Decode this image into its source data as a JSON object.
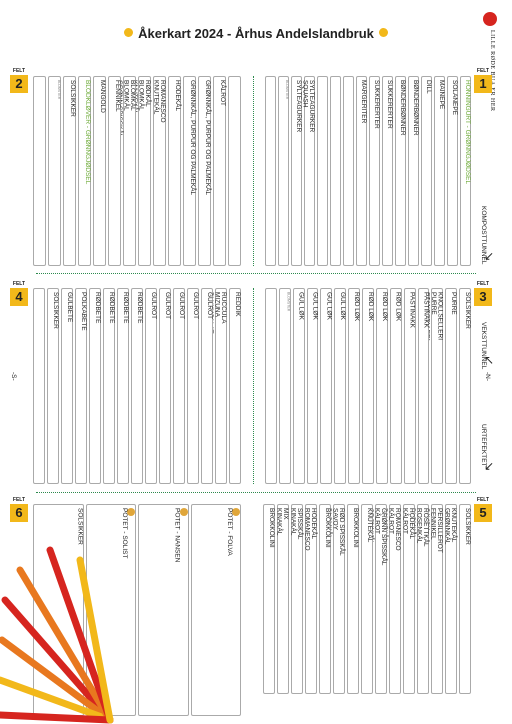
{
  "title": "Åkerkart 2024 - Århus Andelslandbruk",
  "logo": {
    "text": "LILLE RØDE BUA ER HER"
  },
  "felt_label": "FELT",
  "felts": [
    "1",
    "2",
    "3",
    "4",
    "5",
    "6"
  ],
  "side_labels": {
    "kompost": "KOMPOSTTUNNEL",
    "vekst": "VEKSTTUNNEL",
    "urte": "URTEFEKTET",
    "s": "-S-",
    "n": "-N-"
  },
  "field1": [
    [
      "HONNINGURT - GRØNNGJØDSEL"
    ],
    [
      "SOLANEPE"
    ],
    [
      "MAINEPE"
    ],
    [
      "DILL"
    ],
    [
      "BØNDERBØNNER"
    ],
    [
      "BØNDERBØNNER"
    ],
    [
      "SUKKERERTER"
    ],
    [
      "SUKKERERTER"
    ],
    [
      "MARGERITER"
    ],
    [
      ""
    ],
    [
      ""
    ],
    [
      ""
    ],
    [
      "SYLTEAGURKER",
      "SQUASH"
    ],
    [
      "SYLTEAGURKER"
    ],
    [
      "BLOMSTER"
    ],
    [
      ""
    ]
  ],
  "field2": [
    [
      ""
    ],
    [
      "KÅLROT"
    ],
    [
      "GRØNNKÅL, PURPUR OG PALMEKÅL"
    ],
    [
      "GRØNNKÅL, PURPUR OG PALMEKÅL"
    ],
    [
      "HODEKÅL"
    ],
    [
      "ROMANESCO",
      "KNUTEKÅL"
    ],
    [
      "RØDKÅL",
      "BLOMKÅL",
      "KNUTEKÅL"
    ],
    [
      "BLOMKÅL",
      "BLOMKÅL",
      "GRØNN SPISSKÅL"
    ],
    [
      "FENNIKEL"
    ],
    [
      "MANGOLD"
    ],
    [
      "BLODKLØVER - GRØNNGJØDSEL"
    ],
    [
      "SOLSIKKER"
    ],
    [
      "BLOMSTER"
    ],
    [
      ""
    ]
  ],
  "field3": [
    [
      "SOLSIKKER"
    ],
    [
      "PURRE"
    ],
    [
      "KNOLLSELLERI",
      "PURRE",
      "STANGSELLERI"
    ],
    [
      "PASTINAKK"
    ],
    [
      "PASTINAKK"
    ],
    [
      "RØD LØK"
    ],
    [
      "RØD LØK"
    ],
    [
      "RØD LØK"
    ],
    [
      "RØD LØK"
    ],
    [
      "GUL LØK"
    ],
    [
      "GUL LØK"
    ],
    [
      "GUL LØK"
    ],
    [
      "GUL LØK"
    ],
    [
      "BLOMSTER"
    ],
    [
      ""
    ]
  ],
  "field4": [
    [
      "REDDIK"
    ],
    [
      "RUCCULA",
      "MIZUNA",
      "PLUKKSALAT"
    ],
    [
      "GULROT"
    ],
    [
      "GULROT"
    ],
    [
      "GULROT"
    ],
    [
      "GULROT"
    ],
    [
      "GULROT"
    ],
    [
      "RØDBETE"
    ],
    [
      "RØDBETE"
    ],
    [
      "RØDBETE"
    ],
    [
      "RØDBETE"
    ],
    [
      "POLKABETE"
    ],
    [
      "GULBETE"
    ],
    [
      "SOLSIKKER"
    ],
    [
      ""
    ]
  ],
  "field5": [
    [
      "SOLSIKKER"
    ],
    [
      "KNUTEKÅL",
      "GRØNNKÅL"
    ],
    [
      "PERSILLEROT",
      "FENNIKEL",
      "SAVOY"
    ],
    [
      "ROSETTKÅL",
      "ROSENKÅL",
      "BLOMKÅL"
    ],
    [
      "HODEKÅL",
      "KÅLROT"
    ],
    [
      "ROMANESCO",
      "KÅLROT",
      "PALMEKÅL"
    ],
    [
      "GRØNN SPISSKÅL",
      "KÅLROT",
      "GRØNNKÅL"
    ],
    [
      "KNUTEKÅL"
    ],
    [
      "BROKKOLINI"
    ],
    [
      "RØD SPISSKÅL",
      "SAVOY",
      "BLOMKÅL"
    ],
    [
      "BROKKOLINI"
    ],
    [
      "HODEKÅL",
      "ROMANESCO"
    ],
    [
      "SPISSKÅL",
      "KINAKÅL"
    ],
    [
      "MIX",
      "KINAKÅL"
    ],
    [
      "BROKKOLINI"
    ]
  ],
  "field6": [
    [
      "POTET - FOLVA"
    ],
    [
      "POTET - NANSEN"
    ],
    [
      "POTET - SOLIST"
    ],
    [
      "SOLSIKKER"
    ]
  ]
}
